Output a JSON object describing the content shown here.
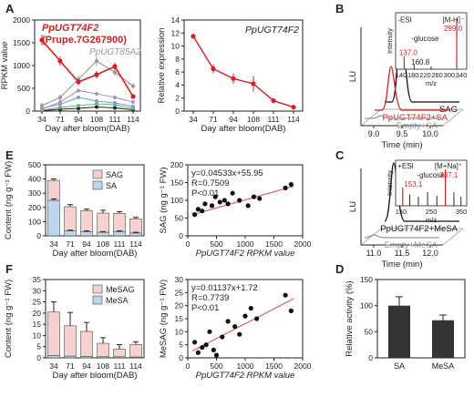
{
  "colors": {
    "red": "#d42020",
    "dark": "#333333",
    "gray": "#999999",
    "pink": "#f7d0d0",
    "blue": "#bdd6ee",
    "trend": "#e06060",
    "bar": "#333333"
  },
  "panels": {
    "A": "A",
    "B": "B",
    "C": "C",
    "D": "D",
    "E": "E",
    "F": "F"
  },
  "chart_data": [
    {
      "id": "A-left",
      "type": "line",
      "ylabel": "RPKM value",
      "xlabel": "Day after bloom(DAB)",
      "categories": [
        "34",
        "71",
        "94",
        "108",
        "111",
        "114"
      ],
      "ylim": [
        0,
        2000
      ],
      "yticks": [
        "0",
        "500",
        "1000",
        "1500",
        "2000"
      ],
      "annotations": [
        "PpUGT74F2",
        "(Prupe.7G267900)",
        "PpUGT85A2"
      ],
      "series": [
        {
          "name": "PpUGT74F2",
          "values": [
            1560,
            1100,
            640,
            800,
            980,
            320
          ],
          "errors": [
            120,
            100,
            60,
            80,
            80,
            40
          ],
          "color": "#d42020"
        },
        {
          "values": [
            120,
            300,
            700,
            1100,
            850,
            550
          ],
          "errors": [
            60,
            60,
            80,
            100,
            80,
            60
          ],
          "color": "#999999"
        },
        {
          "values": [
            40,
            200,
            450,
            380,
            300,
            200
          ],
          "errors": [
            20,
            30,
            40,
            40,
            30,
            30
          ],
          "color": "#b08cc8"
        },
        {
          "values": [
            60,
            150,
            300,
            220,
            180,
            100
          ],
          "errors": [
            20,
            20,
            30,
            30,
            20,
            20
          ],
          "color": "#6fa0d8"
        },
        {
          "values": [
            20,
            80,
            120,
            160,
            140,
            60
          ],
          "errors": [
            10,
            10,
            20,
            20,
            20,
            10
          ],
          "color": "#6cb86c"
        },
        {
          "values": [
            10,
            40,
            60,
            90,
            70,
            30
          ],
          "errors": [
            5,
            5,
            10,
            10,
            10,
            5
          ],
          "color": "#222222"
        }
      ]
    },
    {
      "id": "A-right",
      "type": "line",
      "ylabel": "Relative expression",
      "xlabel": "Day after bloom(DAB)",
      "title": "PpUGT74F2",
      "categories": [
        "34",
        "71",
        "94",
        "108",
        "111",
        "114"
      ],
      "ylim": [
        0,
        14
      ],
      "yticks": [
        "0",
        "2",
        "4",
        "6",
        "8",
        "10",
        "12",
        "14"
      ],
      "series": [
        {
          "name": "PpUGT74F2",
          "values": [
            11.5,
            6.5,
            5.0,
            4.2,
            1.6,
            0.6
          ],
          "errors": [
            0.3,
            0.7,
            0.8,
            1.2,
            0.4,
            0.2
          ],
          "color": "#d42020"
        }
      ]
    },
    {
      "id": "E-left",
      "type": "bar",
      "ylabel": "Content (ng g⁻¹ FW)",
      "xlabel": "Day after bloom(DAB)",
      "categories": [
        "34",
        "71",
        "94",
        "108",
        "111",
        "114"
      ],
      "ylim": [
        0,
        500
      ],
      "yticks": [
        "0",
        "100",
        "200",
        "300",
        "400",
        "500"
      ],
      "legend": [
        "SAG",
        "SA"
      ],
      "series": [
        {
          "name": "SA",
          "values": [
            250,
            35,
            30,
            25,
            30,
            20
          ],
          "errors": [
            10,
            5,
            5,
            5,
            5,
            5
          ],
          "color": "#bdd6ee"
        },
        {
          "name": "SAG",
          "values": [
            140,
            170,
            148,
            135,
            128,
            100
          ],
          "errors": [
            10,
            15,
            10,
            20,
            12,
            10
          ],
          "color": "#f7d0d0"
        }
      ]
    },
    {
      "id": "E-right",
      "type": "scatter",
      "ylabel": "SAG (ng g⁻¹ FW)",
      "xlabel": "PpUGT74F2 RPKM value",
      "xlim": [
        0,
        2000
      ],
      "ylim": [
        0,
        200
      ],
      "xticks": [
        "0",
        "500",
        "1000",
        "1500",
        "2000"
      ],
      "yticks": [
        "0",
        "50",
        "100",
        "150",
        "200"
      ],
      "stats": [
        "y=0.04533x+55.95",
        "R=0.7509",
        "P<0.01"
      ],
      "fit": {
        "slope": 0.04533,
        "intercept": 55.95
      },
      "x": [
        120,
        180,
        250,
        300,
        420,
        480,
        560,
        640,
        700,
        780,
        900,
        1050,
        1150,
        1250,
        1700,
        1800
      ],
      "y": [
        60,
        75,
        70,
        90,
        85,
        110,
        95,
        100,
        90,
        120,
        100,
        85,
        110,
        105,
        135,
        145
      ]
    },
    {
      "id": "F-left",
      "type": "bar",
      "ylabel": "Content (ng g⁻¹ FW)",
      "xlabel": "Day after bloom(DAB)",
      "categories": [
        "34",
        "71",
        "94",
        "108",
        "111",
        "114"
      ],
      "ylim": [
        0,
        35
      ],
      "yticks": [
        "0",
        "5",
        "10",
        "15",
        "20",
        "25",
        "30",
        "35"
      ],
      "legend": [
        "MeSAG",
        "MeSA"
      ],
      "series": [
        {
          "name": "MeSA",
          "values": [
            1.0,
            0.8,
            0.6,
            0.5,
            0.5,
            0.4
          ],
          "errors": [
            0,
            0,
            0,
            0,
            0,
            0
          ],
          "color": "#bdd6ee"
        },
        {
          "name": "MeSAG",
          "values": [
            19.5,
            13.5,
            11.2,
            6.0,
            3.4,
            5.6
          ],
          "errors": [
            4.5,
            6.0,
            4.0,
            2.5,
            2.0,
            1.2
          ],
          "color": "#f7d0d0"
        }
      ]
    },
    {
      "id": "F-right",
      "type": "scatter",
      "ylabel": "MeSAG (ng g⁻¹ FW)",
      "xlabel": "PpUGT74F2 RPKM value",
      "xlim": [
        0,
        2000
      ],
      "ylim": [
        0,
        30
      ],
      "xticks": [
        "0",
        "500",
        "1000",
        "1500",
        "2000"
      ],
      "yticks": [
        "0",
        "5",
        "10",
        "15",
        "20",
        "25",
        "30"
      ],
      "stats": [
        "y=0.01137x+1.72",
        "R=0.7739",
        "P<0.01"
      ],
      "fit": {
        "slope": 0.01137,
        "intercept": 1.72
      },
      "x": [
        120,
        180,
        250,
        320,
        380,
        450,
        500,
        600,
        700,
        820,
        900,
        1000,
        1100,
        1200,
        1700,
        1800
      ],
      "y": [
        6,
        2,
        4,
        5,
        10,
        3,
        1,
        8,
        14,
        12,
        9,
        16,
        19,
        15,
        24,
        18
      ]
    },
    {
      "id": "D",
      "type": "bar",
      "ylabel": "Relative activity (%)",
      "categories": [
        "SA",
        "MeSA"
      ],
      "ylim": [
        0,
        150
      ],
      "yticks": [
        "0",
        "50",
        "100",
        "150"
      ],
      "values": [
        100,
        72
      ],
      "errors": [
        17,
        10
      ],
      "color": "#333333"
    },
    {
      "id": "B",
      "type": "line",
      "ylabel": "LU",
      "xlabel": "Time (min)",
      "xticks": [
        "9.0",
        "9.5",
        "10.0"
      ],
      "traces": [
        "SAG",
        "PpUGT74F2+SA",
        "Empty+SA"
      ],
      "inset": {
        "ylabel": "Intensity",
        "xlabel": "m/z",
        "xticks": [
          "140",
          "180",
          "220",
          "260",
          "300",
          "340"
        ],
        "labels": [
          "-ESI",
          "[M-H]⁻",
          "299.0",
          "-glucose",
          "137.0",
          "160.8"
        ]
      }
    },
    {
      "id": "C",
      "type": "line",
      "ylabel": "LU",
      "xlabel": "Time (min)",
      "xticks": [
        "11.0",
        "11.5",
        "12.0"
      ],
      "traces": [
        "PpUGT74F2+MeSA",
        "Empty+MeSA"
      ],
      "inset": {
        "ylabel": "Intensity",
        "xlabel": "m/z",
        "xticks": [
          "150",
          "250",
          "350"
        ],
        "labels": [
          "+ESI",
          "[M+Na]⁺",
          "-glucose",
          "337.1",
          "153.1"
        ]
      }
    }
  ]
}
